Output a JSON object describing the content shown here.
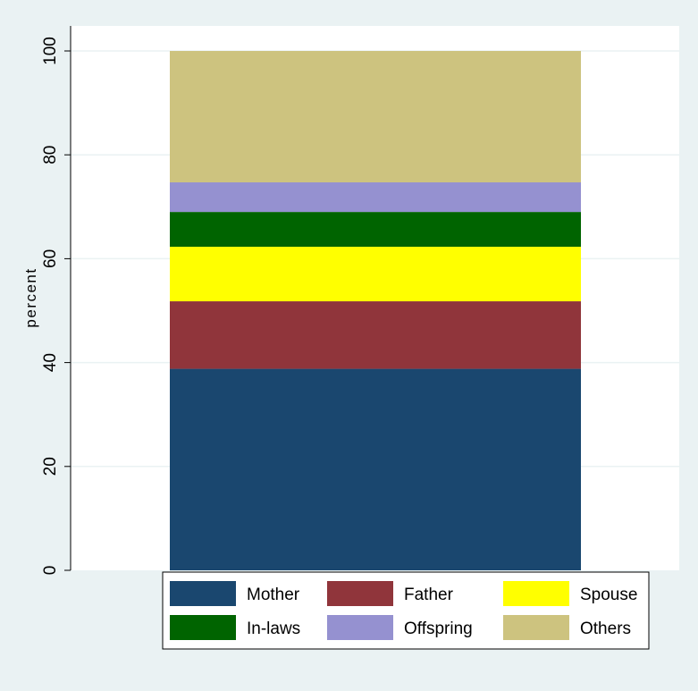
{
  "chart_data": {
    "type": "bar",
    "stacked": true,
    "ylabel": "percent",
    "ylim": [
      0,
      100
    ],
    "yticks": [
      0,
      20,
      40,
      60,
      80,
      100
    ],
    "grid": true,
    "legend_position": "bottom",
    "categories": [
      ""
    ],
    "series": [
      {
        "name": "Mother",
        "values": [
          38.8
        ],
        "color": "#1a476f"
      },
      {
        "name": "Father",
        "values": [
          13.0
        ],
        "color": "#90353b"
      },
      {
        "name": "Spouse",
        "values": [
          10.5
        ],
        "color": "#ffff00"
      },
      {
        "name": "In-laws",
        "values": [
          6.7
        ],
        "color": "#006400"
      },
      {
        "name": "Offspring",
        "values": [
          5.7
        ],
        "color": "#9591d0"
      },
      {
        "name": "Others",
        "values": [
          25.3
        ],
        "color": "#cdc37f"
      }
    ]
  }
}
